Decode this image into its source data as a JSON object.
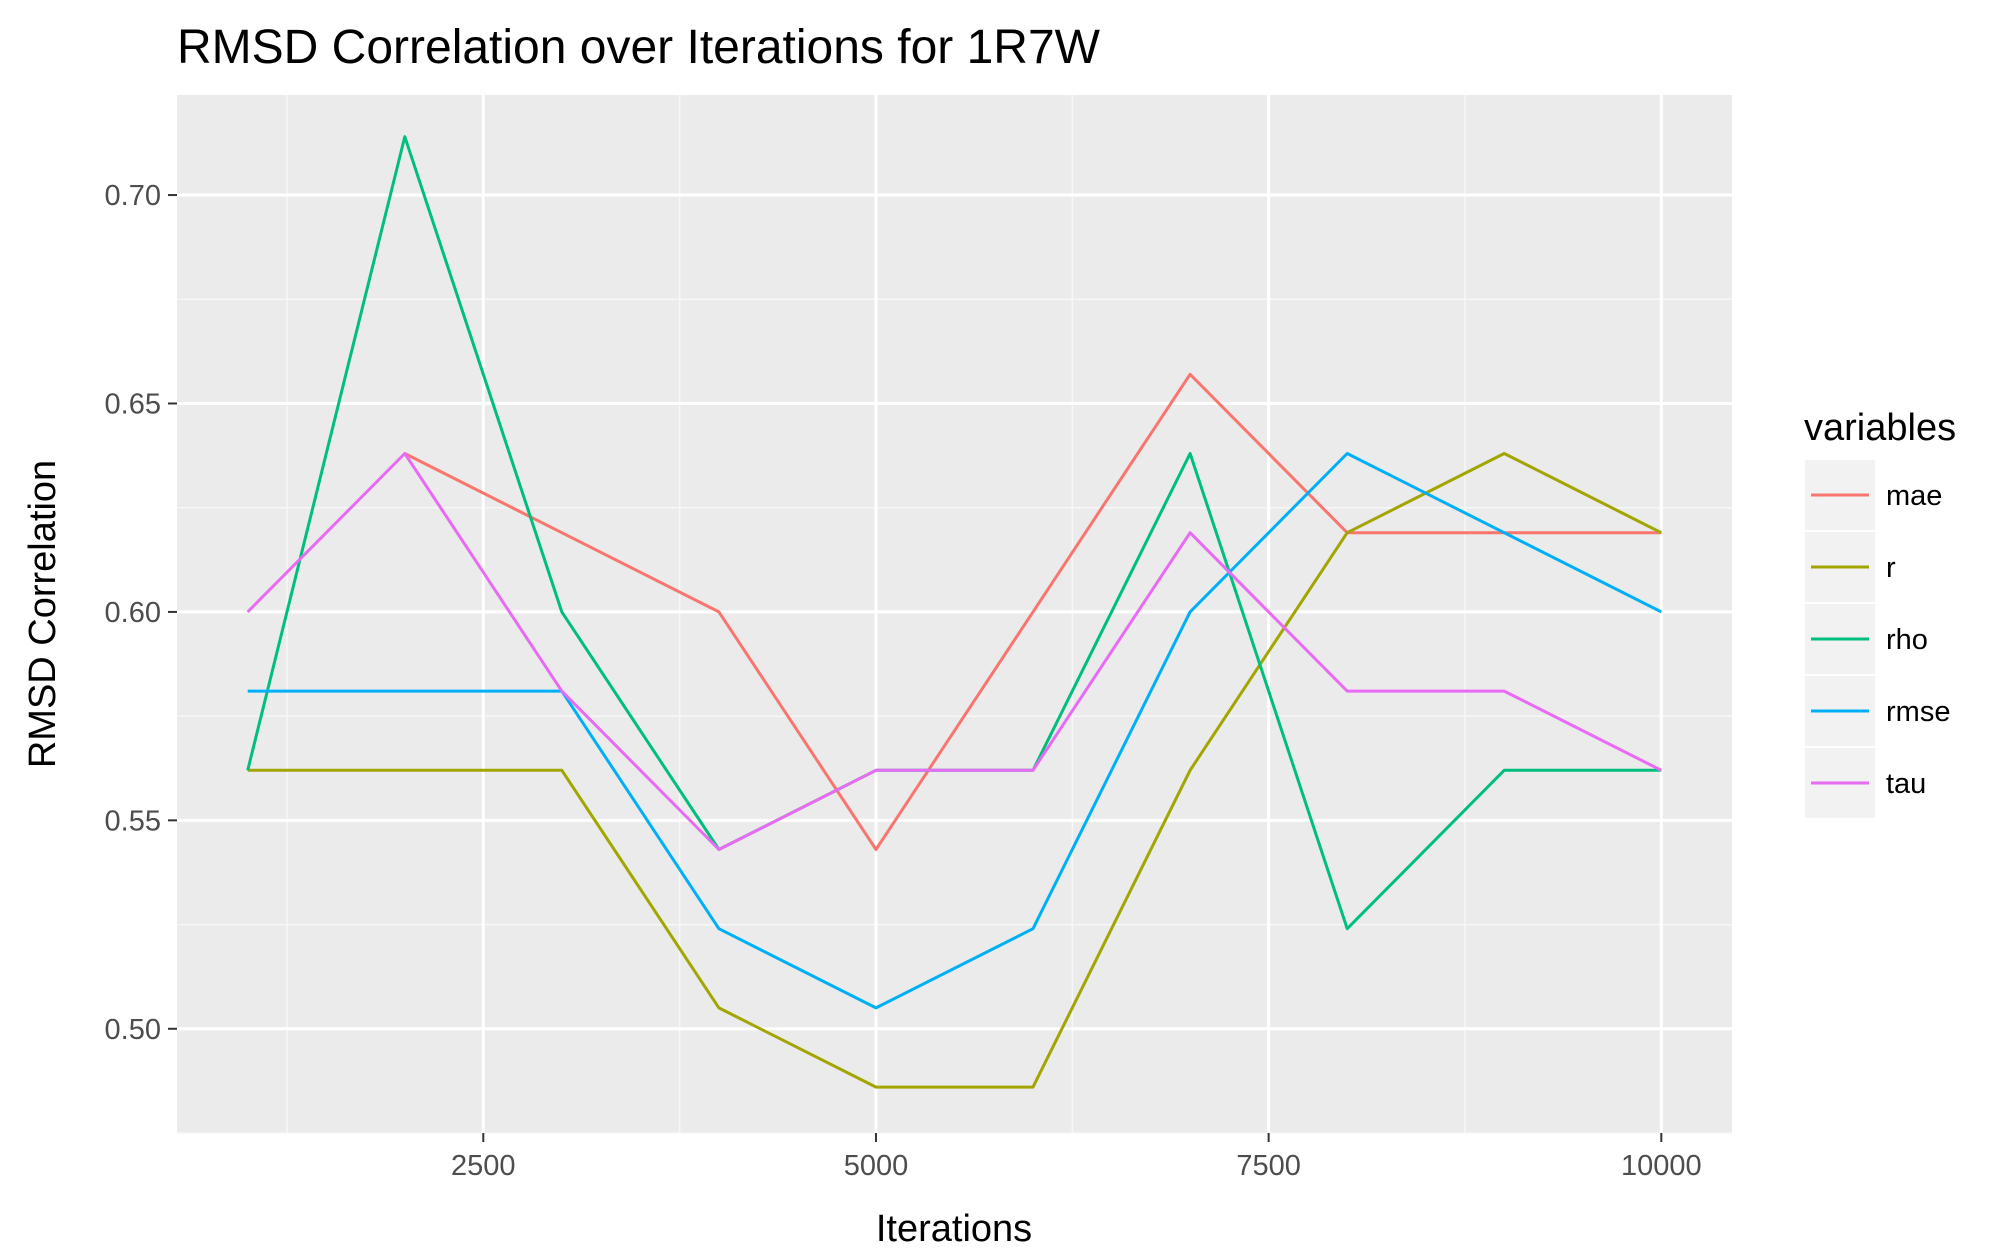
{
  "chart_data": {
    "type": "line",
    "title": "RMSD Correlation over Iterations for 1R7W",
    "xlabel": "Iterations",
    "ylabel": "RMSD Correlation",
    "x": [
      1000,
      2000,
      3000,
      4000,
      5000,
      6000,
      7000,
      8000,
      9000,
      10000
    ],
    "xlim": [
      550,
      10450
    ],
    "ylim": [
      0.475,
      0.724
    ],
    "x_ticks": [
      2500,
      5000,
      7500,
      10000
    ],
    "x_tick_labels": [
      "2500",
      "5000",
      "7500",
      "10000"
    ],
    "y_ticks": [
      0.5,
      0.55,
      0.6,
      0.65,
      0.7
    ],
    "y_tick_labels": [
      "0.50",
      "0.55",
      "0.60",
      "0.65",
      "0.70"
    ],
    "grid": true,
    "background": "#ebebeb",
    "legend": {
      "title": "variables",
      "position": "right"
    },
    "series": [
      {
        "name": "mae",
        "color": "#F8766D",
        "values": [
          0.638,
          0.638,
          0.619,
          0.6,
          0.543,
          0.6,
          0.657,
          0.619,
          0.619,
          0.619
        ],
        "x": [
          2000,
          2000,
          3000,
          4000,
          5000,
          6000,
          7000,
          8000,
          9000,
          10000
        ]
      },
      {
        "name": "r",
        "color": "#A3A500",
        "values": [
          0.562,
          0.562,
          0.562,
          0.505,
          0.486,
          0.486,
          0.562,
          0.619,
          0.638,
          0.619
        ]
      },
      {
        "name": "rho",
        "color": "#00BF7D",
        "values": [
          0.562,
          0.714,
          0.6,
          0.543,
          0.562,
          0.562,
          0.638,
          0.524,
          0.562,
          0.562
        ]
      },
      {
        "name": "rmse",
        "color": "#00B0F6",
        "values": [
          0.581,
          0.581,
          0.581,
          0.524,
          0.505,
          0.524,
          0.6,
          0.638,
          0.619,
          0.6
        ]
      },
      {
        "name": "tau",
        "color": "#E76BF3",
        "values": [
          0.6,
          0.638,
          0.581,
          0.543,
          0.562,
          0.562,
          0.619,
          0.581,
          0.581,
          0.562
        ]
      }
    ]
  }
}
